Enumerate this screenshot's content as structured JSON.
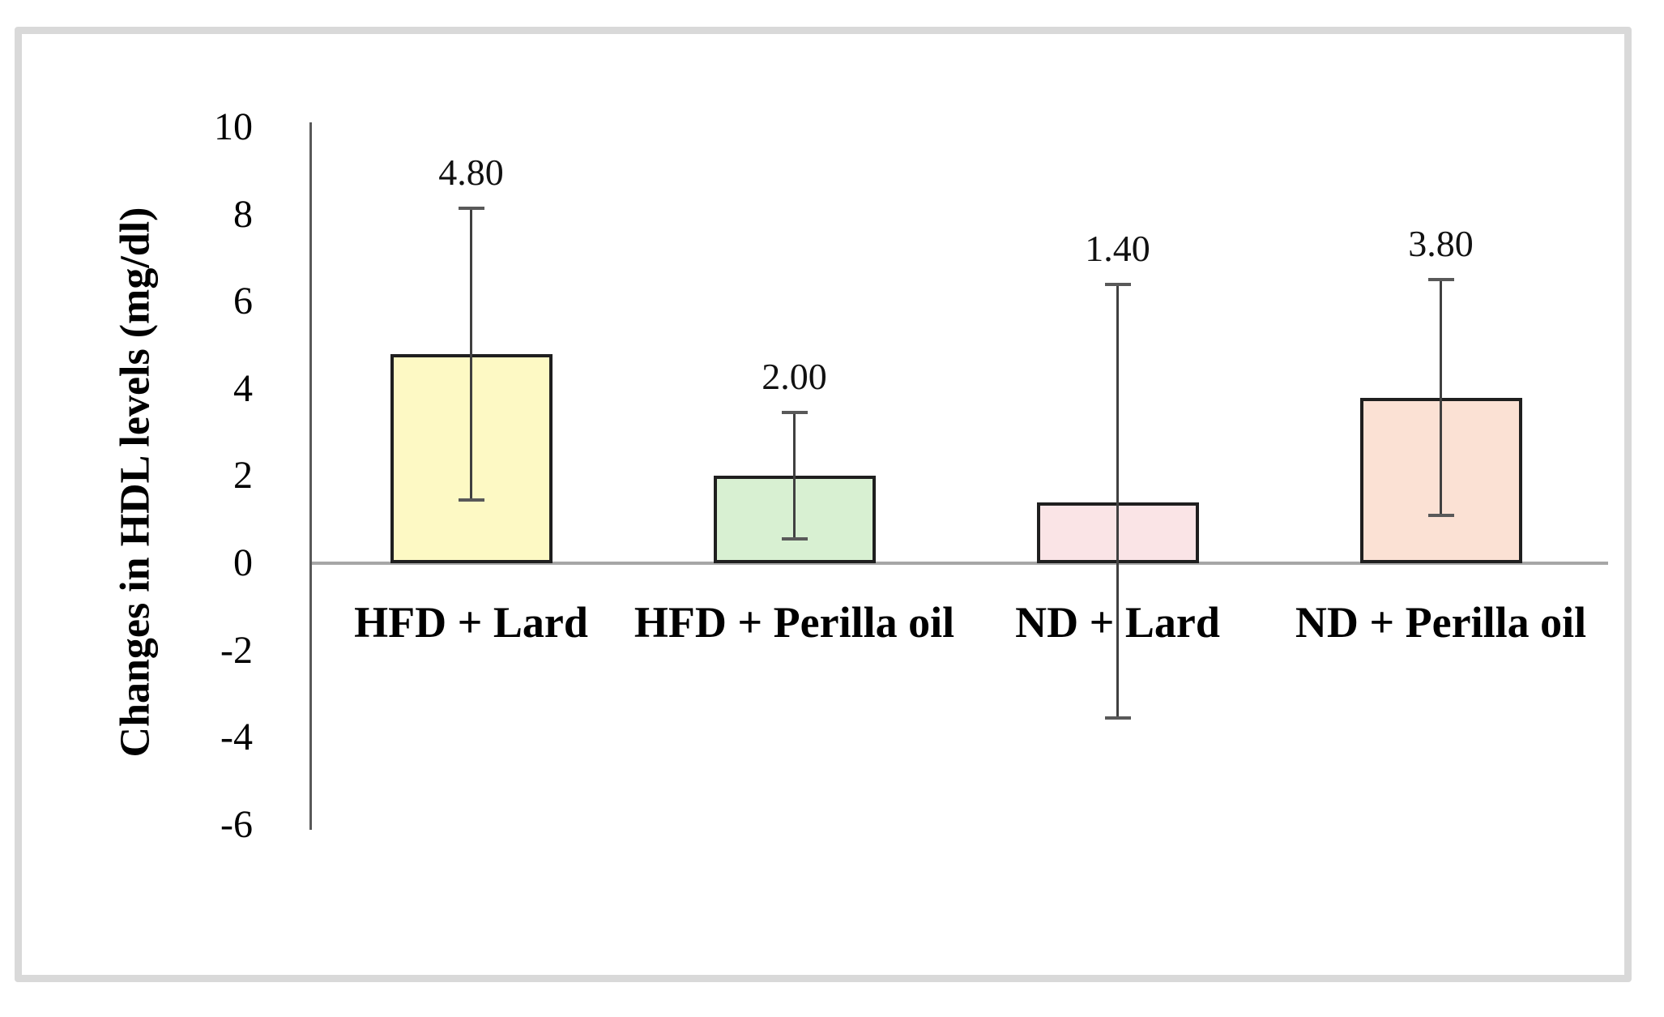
{
  "figure": {
    "background_color": "#ffffff",
    "frame_color": "#d9d9d9"
  },
  "chart_data": {
    "type": "bar",
    "title": "",
    "xlabel": "",
    "ylabel": "Changes in HDL levels (mg/dl)",
    "ylim": [
      -6,
      10
    ],
    "yticks": [
      10,
      8,
      6,
      4,
      2,
      0,
      -2,
      -4,
      -6
    ],
    "grid": false,
    "legend_position": "none",
    "categories": [
      "HFD + Lard",
      "HFD + Perilla oil",
      "ND + Lard",
      "ND + Perilla oil"
    ],
    "values": [
      4.8,
      2.0,
      1.4,
      3.8
    ],
    "value_labels": [
      "4.80",
      "2.00",
      "1.40",
      "3.80"
    ],
    "error_bars": [
      {
        "low": 1.45,
        "high": 8.15
      },
      {
        "low": 0.55,
        "high": 3.45
      },
      {
        "low": -3.55,
        "high": 6.4
      },
      {
        "low": 1.1,
        "high": 6.5
      }
    ],
    "bar_colors": [
      "#fdf9c4",
      "#d8f0d2",
      "#fae4e6",
      "#fbe1d4"
    ],
    "bar_border_color": "#1f1f1f",
    "error_bar_color": "#404040",
    "error_cap_color": "#595959",
    "axis_line_color": "#595959",
    "baseline_color": "#a6a6a6",
    "text_color": "#000000"
  }
}
